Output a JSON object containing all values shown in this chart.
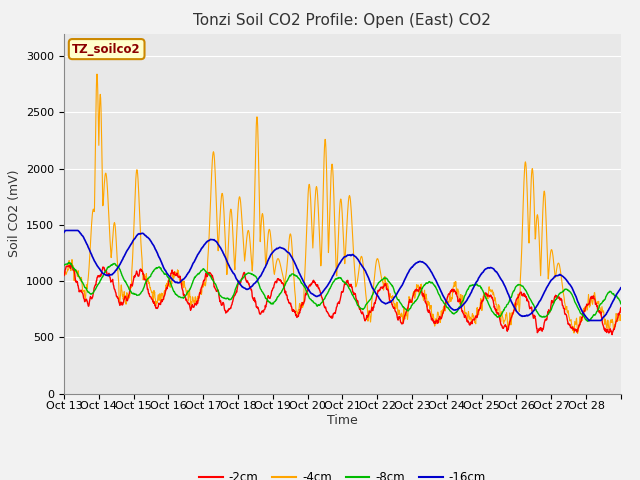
{
  "title": "Tonzi Soil CO2 Profile: Open (East) CO2",
  "ylabel": "Soil CO2 (mV)",
  "xlabel": "Time",
  "dataset_label": "TZ_soilco2",
  "ylim": [
    0,
    3200
  ],
  "yticks": [
    0,
    500,
    1000,
    1500,
    2000,
    2500,
    3000
  ],
  "x_tick_labels": [
    "Oct 13",
    "Oct 14",
    "Oct 15",
    "Oct 16",
    "Oct 17",
    "Oct 18",
    "Oct 19",
    "Oct 20",
    "Oct 21",
    "Oct 22",
    "Oct 23",
    "Oct 24",
    "Oct 25",
    "Oct 26",
    "Oct 27",
    "Oct 28"
  ],
  "legend_labels": [
    "-2cm",
    "-4cm",
    "-8cm",
    "-16cm"
  ],
  "line_colors": [
    "#ff0000",
    "#ffa500",
    "#00bb00",
    "#0000cc"
  ],
  "fig_bg_color": "#f2f2f2",
  "plot_bg_color": "#e8e8e8",
  "title_fontsize": 11,
  "axis_fontsize": 9,
  "tick_fontsize": 8,
  "grid_color": "#ffffff",
  "label_box_facecolor": "#ffffcc",
  "label_box_edgecolor": "#cc8800",
  "label_text_color": "#8b0000"
}
